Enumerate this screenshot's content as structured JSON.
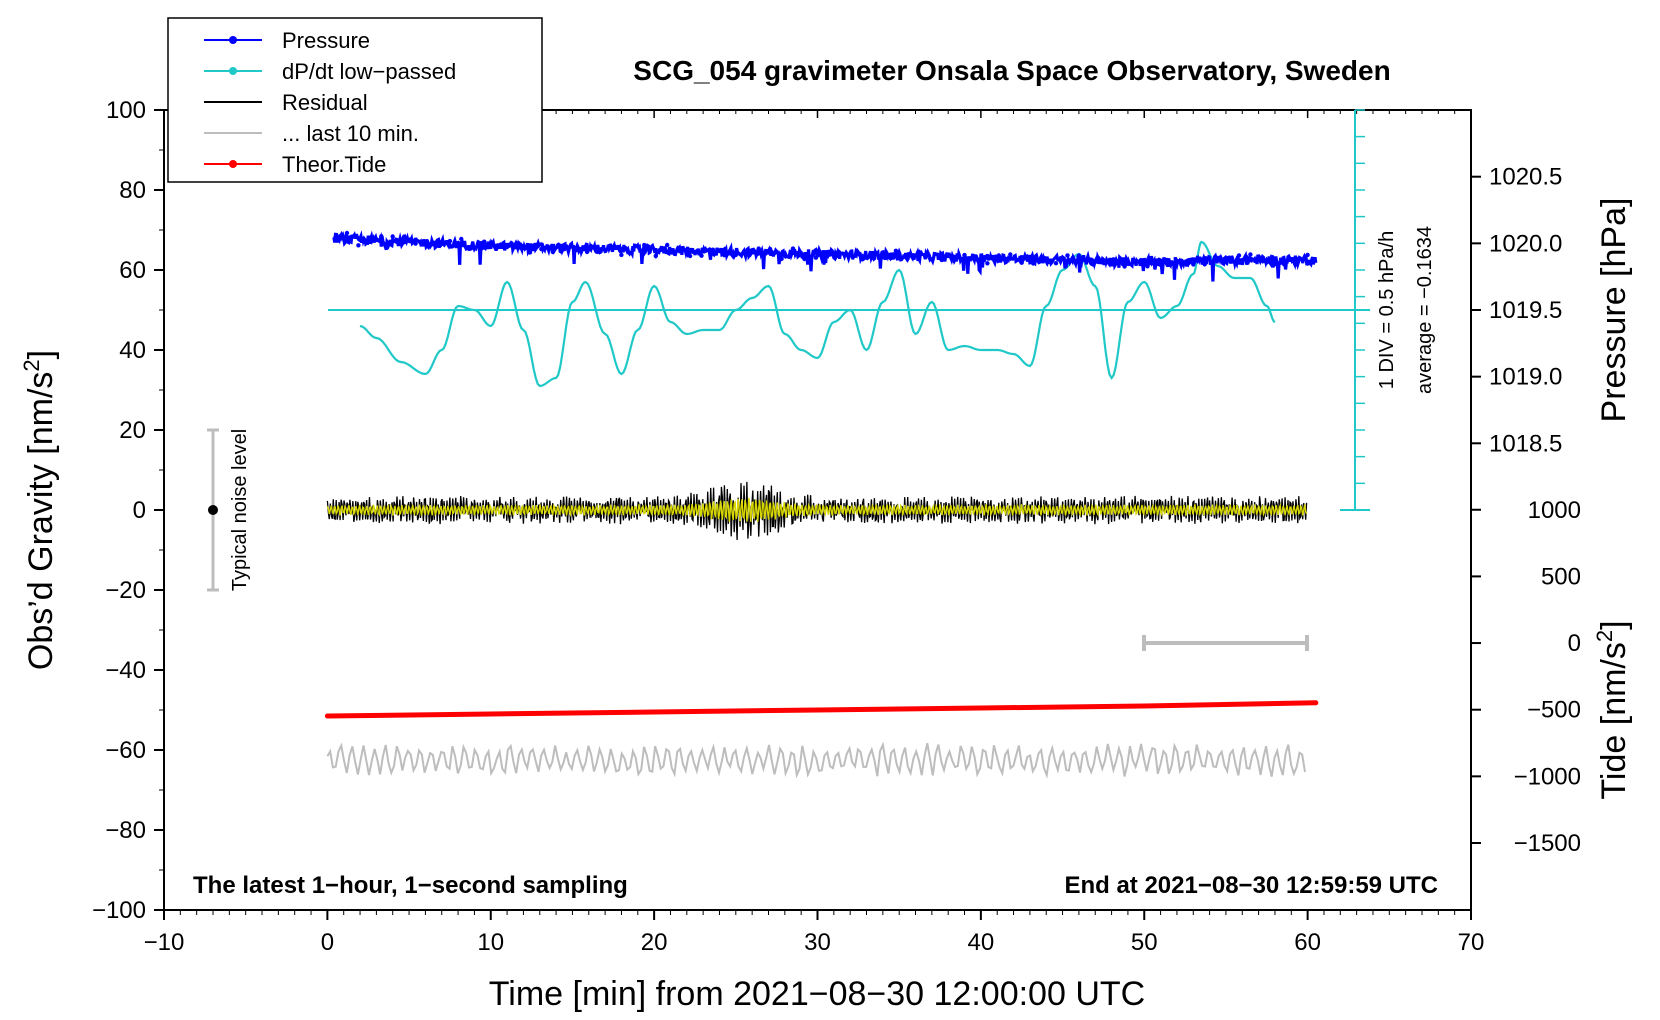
{
  "chart_data": {
    "type": "line",
    "title": "SCG_054 gravimeter Onsala Space Observatory, Sweden",
    "xlabel": "Time [min] from 2021−08−30 12:00:00 UTC",
    "ylabel_left": "Obs’d Gravity [nm/s²]",
    "ylabel_left_base": "Obs’d Gravity [nm/s",
    "ylabel_left_sup": "2",
    "ylabel_left_close": "]",
    "ylabel_right_pressure": "Pressure [hPa]",
    "ylabel_right_tide": "Tide [nm/s²]",
    "ylabel_right_tide_base": "Tide [nm/s",
    "ylabel_right_tide_sup": "2",
    "ylabel_right_tide_close": "]",
    "xlim": [
      -10,
      70
    ],
    "ylim": [
      -100,
      100
    ],
    "x_ticks": [
      -10,
      0,
      10,
      20,
      30,
      40,
      50,
      60,
      70
    ],
    "x_tick_labels": [
      "−10",
      "0",
      "10",
      "20",
      "30",
      "40",
      "50",
      "60",
      "70"
    ],
    "y_ticks": [
      -100,
      -80,
      -60,
      -40,
      -20,
      0,
      20,
      40,
      60,
      80,
      100
    ],
    "y_tick_labels": [
      "−100",
      "−80",
      "−60",
      "−40",
      "−20",
      "0",
      "20",
      "40",
      "60",
      "80",
      "100"
    ],
    "pressure_ticks": [
      1018.5,
      1019.0,
      1019.5,
      1020.0,
      1020.5
    ],
    "pressure_tick_labels": [
      "1018.5",
      "1019.0",
      "1019.5",
      "1020.0",
      "1020.5"
    ],
    "tide_ticks": [
      -1500,
      -1000,
      -500,
      0,
      500,
      1000
    ],
    "tide_tick_labels": [
      "−1500",
      "−1000",
      "−500",
      "0",
      "500",
      "1000"
    ],
    "legend": [
      {
        "label": "Pressure",
        "color": "#0000ff",
        "marker": true
      },
      {
        "label": "dP/dt low−passed",
        "color": "#20c8c8",
        "marker": true
      },
      {
        "label": "Residual",
        "color": "#000000",
        "marker": false
      },
      {
        "label": "... last 10 min.",
        "color": "#bdbdbd",
        "marker": false
      },
      {
        "label": "Theor.Tide",
        "color": "#ff0000",
        "marker": true
      }
    ],
    "legend_position": "top-left",
    "series": [
      {
        "name": "Pressure",
        "color": "#0000ff",
        "x": [
          0,
          5,
          10,
          15,
          20,
          25,
          30,
          35,
          40,
          45,
          50,
          55,
          60
        ],
        "y": [
          68.0,
          67.0,
          66.0,
          65.5,
          65.0,
          64.5,
          64.0,
          63.5,
          63.0,
          62.5,
          62.0,
          62.5,
          62.5
        ]
      },
      {
        "name": "dP/dt low−passed",
        "color": "#20c8c8",
        "x": [
          2.0,
          3.0,
          4.5,
          6.0,
          7.0,
          8.0,
          9.0,
          10.0,
          11.0,
          12.0,
          13.0,
          14.0,
          15.0,
          15.8,
          17.0,
          18.0,
          19.0,
          20.0,
          21.0,
          22.0,
          23.0,
          24.0,
          25.0,
          26.0,
          27.0,
          28.0,
          29.0,
          30.0,
          31.0,
          32.0,
          33.0,
          34.0,
          35.0,
          36.0,
          37.0,
          38.0,
          39.0,
          40.0,
          41.0,
          42.0,
          43.0,
          44.0,
          45.0,
          46.0,
          47.0,
          48.0,
          49.0,
          50.0,
          51.0,
          52.0,
          53.0,
          53.5,
          54.5,
          55.5,
          56.5,
          57.5,
          58.0
        ],
        "y": [
          46,
          43,
          37,
          34,
          40,
          51,
          50,
          46,
          57,
          45,
          31,
          33,
          52,
          57,
          44,
          34,
          45,
          56,
          47,
          44,
          45,
          45,
          50,
          53,
          56,
          44,
          40,
          38,
          47,
          50,
          40,
          52,
          60,
          44,
          52,
          40,
          41,
          40,
          40,
          39,
          36,
          51,
          60,
          64,
          56,
          33,
          52,
          57,
          48,
          51,
          59,
          67,
          61,
          58,
          58,
          51,
          47
        ]
      },
      {
        "name": "Residual",
        "color": "#000000",
        "x": [
          0,
          10,
          20,
          22,
          24,
          25,
          26,
          28,
          30,
          40,
          50,
          60
        ],
        "y": [
          0,
          0,
          0,
          0,
          0,
          0,
          0,
          0,
          0,
          0,
          0,
          0
        ]
      },
      {
        "name": "... last 10 min.",
        "color": "#bdbdbd",
        "x": [
          0,
          10,
          20,
          30,
          40,
          50,
          60
        ],
        "y": [
          -62,
          -62,
          -62,
          -62,
          -62,
          -62,
          -62
        ]
      },
      {
        "name": "Theor.Tide",
        "color": "#ff0000",
        "x": [
          0,
          10,
          20,
          30,
          40,
          50,
          60.5
        ],
        "y": [
          -51.5,
          -51,
          -50.5,
          -50,
          -49.5,
          -49,
          -48.2
        ]
      }
    ],
    "annotations": {
      "bottom_left": "The latest 1−hour, 1−second sampling",
      "bottom_right": "End at 2021−08−30 12:59:59 UTC",
      "noise_label": "Typical noise level",
      "dpdt_scale": "1 DIV = 0.5 hPa/h",
      "average": "average = −0.1634"
    }
  }
}
